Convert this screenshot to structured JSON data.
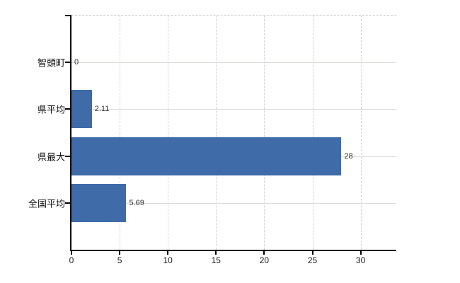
{
  "chart_data": {
    "type": "bar",
    "orientation": "horizontal",
    "title": "",
    "xlabel": "",
    "ylabel": "",
    "categories": [
      "智頭町",
      "県平均",
      "県最大",
      "全国平均"
    ],
    "values": [
      0,
      2.11,
      28,
      5.69
    ],
    "value_labels": [
      "0",
      "2.11",
      "28",
      "5.69"
    ],
    "xticks": [
      0,
      5,
      10,
      15,
      20,
      25,
      30
    ],
    "xtick_labels": [
      "0",
      "5",
      "10",
      "15",
      "20",
      "25",
      "30"
    ],
    "xlim": [
      0,
      33.7
    ],
    "grid": true,
    "legend": false,
    "colors": {
      "bar": "#3f6ca8",
      "axis": "#000000",
      "grid_vertical": "#d5d0d5",
      "grid_horizontal": "#d9ded9",
      "plot_top_border": "#c9c9c9",
      "value_label": "#333333",
      "tick_label": "#1a1a1a",
      "category_label": "#111111"
    }
  }
}
